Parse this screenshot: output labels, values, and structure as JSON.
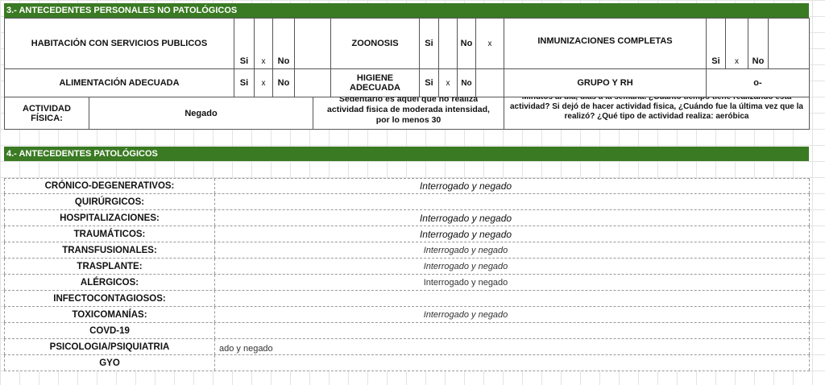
{
  "section3": {
    "title": "3.- ANTECEDENTES PERSONALES NO PATOLÓGICOS",
    "habitacion": {
      "label": "HABITACIÓN CON SERVICIOS PUBLICOS",
      "si": "Si",
      "mark": "x",
      "no": "No"
    },
    "zoonosis": {
      "label": "ZOONOSIS",
      "si": "Si",
      "no": "No",
      "mark": "x"
    },
    "inmunizaciones": {
      "label": "INMUNIZACIONES COMPLETAS",
      "si": "Si",
      "mark": "x",
      "no": "No"
    },
    "alimentacion": {
      "label": "ALIMENTACIÓN ADECUADA",
      "si": "Si",
      "mark": "x",
      "no": "No"
    },
    "higiene": {
      "label": "HIGIENE ADECUADA",
      "si": "Si",
      "mark": "x",
      "no": "No"
    },
    "grupo": {
      "label": "GRUPO Y RH",
      "value": "o-"
    },
    "actividad": {
      "label": "ACTIVIDAD FÍSICA:",
      "value": "Negado",
      "note1": "Sedentario es aquel que no realiza actividad fisica de moderada intensidad, por lo menos 30",
      "note2": "Minutos al día, días a la semana. ¿Cuánto tiempo tiene realizando esta actividad? Si dejó de hacer actividad fisica, ¿Cuándo fue la última vez que la realizó? ¿Qué tipo de actividad realiza: aeróbica"
    }
  },
  "section4": {
    "title": "4.- ANTECEDENTES PATOLÓGICOS",
    "rows": [
      {
        "label": "CRÓNICO-DEGENERATIVOS:",
        "value": "Interrogado y negado",
        "style": "s0"
      },
      {
        "label": "QUIRÚRGICOS:",
        "value": "",
        "style": "s0"
      },
      {
        "label": "HOSPITALIZACIONES:",
        "value": "Interrogado y negado",
        "style": "s0"
      },
      {
        "label": "TRAUMÁTICOS:",
        "value": "Interrogado y negado",
        "style": "s0"
      },
      {
        "label": "TRANSFUSIONALES:",
        "value": "Interrogado y negado",
        "style": "s1"
      },
      {
        "label": "TRASPLANTE:",
        "value": "Interrogado y negado",
        "style": "s1"
      },
      {
        "label": "ALÉRGICOS:",
        "value": "Interrogado y negado",
        "style": "s2"
      },
      {
        "label": "INFECTOCONTAGIOSOS:",
        "value": "",
        "style": "s0"
      },
      {
        "label": "TOXICOMANÍAS:",
        "value": "Interrogado y negado",
        "style": "s1"
      },
      {
        "label": "COVD-19",
        "value": "",
        "style": "s0"
      },
      {
        "label": "PSICOLOGIA/PSIQUIATRIA",
        "value": "",
        "overflow": "ado y negado",
        "style": "s0"
      },
      {
        "label": "GYO",
        "value": "",
        "style": "s0"
      }
    ]
  },
  "colors": {
    "header_green": "#3a7a23"
  }
}
